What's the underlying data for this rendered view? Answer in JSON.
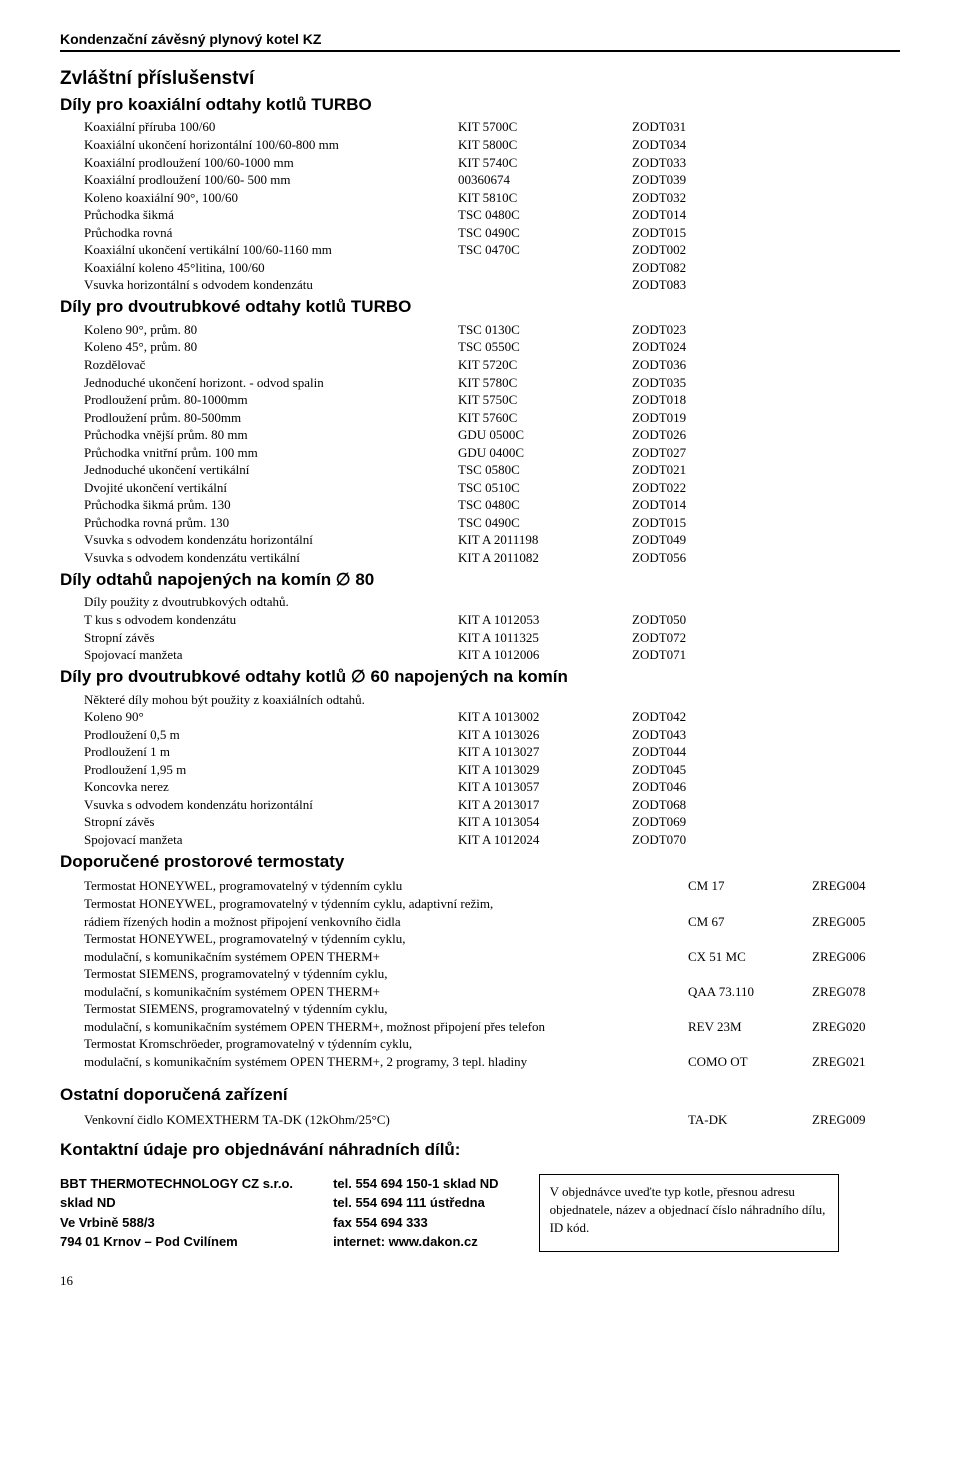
{
  "header": "Kondenzační závěsný plynový kotel KZ",
  "h1": "Zvláštní příslušenství",
  "sections": {
    "s1": {
      "title": "Díly pro koaxiální odtahy kotlů TURBO",
      "rows": [
        [
          "Koaxiální příruba 100/60",
          "KIT 5700C",
          "ZODT031"
        ],
        [
          "Koaxiální ukončení horizontální 100/60-800 mm",
          "KIT 5800C",
          "ZODT034"
        ],
        [
          "Koaxiální prodloužení 100/60-1000 mm",
          "KIT 5740C",
          "ZODT033"
        ],
        [
          "Koaxiální prodloužení 100/60- 500 mm",
          "00360674",
          "ZODT039"
        ],
        [
          "Koleno koaxiální 90°, 100/60",
          "KIT 5810C",
          "ZODT032"
        ],
        [
          "Průchodka šikmá",
          "TSC 0480C",
          "ZODT014"
        ],
        [
          "Průchodka rovná",
          "TSC 0490C",
          "ZODT015"
        ],
        [
          "Koaxiální ukončení vertikální 100/60-1160 mm",
          "TSC 0470C",
          "ZODT002"
        ],
        [
          "Koaxiální koleno 45°litina, 100/60",
          "",
          "ZODT082"
        ],
        [
          "Vsuvka horizontální s odvodem kondenzátu",
          "",
          "ZODT083"
        ]
      ]
    },
    "s2": {
      "title": "Díly pro dvoutrubkové odtahy kotlů TURBO",
      "rows": [
        [
          "Koleno 90°, prům. 80",
          "TSC 0130C",
          "ZODT023"
        ],
        [
          "Koleno 45°, prům. 80",
          "TSC 0550C",
          "ZODT024"
        ],
        [
          "Rozdělovač",
          "KIT 5720C",
          "ZODT036"
        ],
        [
          "Jednoduché ukončení horizont. - odvod spalin",
          "KIT 5780C",
          "ZODT035"
        ],
        [
          "Prodloužení prům. 80-1000mm",
          "KIT 5750C",
          "ZODT018"
        ],
        [
          "Prodloužení prům. 80-500mm",
          "KIT 5760C",
          "ZODT019"
        ],
        [
          "Průchodka vnější prům.  80 mm",
          "GDU 0500C",
          "ZODT026"
        ],
        [
          "Průchodka vnitřní prům. 100 mm",
          "GDU 0400C",
          "ZODT027"
        ],
        [
          "Jednoduché ukončení vertikální",
          "TSC 0580C",
          "ZODT021"
        ],
        [
          "Dvojité ukončení vertikální",
          "TSC 0510C",
          "ZODT022"
        ],
        [
          "Průchodka šikmá prům. 130",
          "TSC 0480C",
          "ZODT014"
        ],
        [
          "Průchodka rovná prům. 130",
          "TSC 0490C",
          "ZODT015"
        ],
        [
          "Vsuvka s odvodem kondenzátu horizontální",
          "KIT A 2011198",
          "ZODT049"
        ],
        [
          "Vsuvka s odvodem kondenzátu vertikální",
          "KIT A 2011082",
          "ZODT056"
        ]
      ]
    },
    "s3": {
      "title": "Díly odtahů napojených na komín ∅ 80",
      "note": "Díly použity z dvoutrubkových  odtahů.",
      "rows": [
        [
          "T kus s odvodem kondenzátu",
          "KIT A 1012053",
          "ZODT050"
        ],
        [
          "Stropní závěs",
          "KIT A 1011325",
          "ZODT072"
        ],
        [
          "Spojovací manžeta",
          "KIT A 1012006",
          "ZODT071"
        ]
      ]
    },
    "s4": {
      "title": "Díly pro dvoutrubkové odtahy kotlů ∅ 60  napojených na komín",
      "note": "Některé díly mohou být použity z koaxiálních odtahů.",
      "rows": [
        [
          "Koleno 90°",
          "KIT A 1013002",
          "ZODT042"
        ],
        [
          "Prodloužení 0,5 m",
          "KIT A 1013026",
          "ZODT043"
        ],
        [
          "Prodloužení 1 m",
          "KIT A 1013027",
          "ZODT044"
        ],
        [
          "Prodloužení 1,95 m",
          "KIT A 1013029",
          "ZODT045"
        ],
        [
          "Koncovka nerez",
          "KIT A 1013057",
          "ZODT046"
        ],
        [
          "Vsuvka s odvodem kondenzátu horizontální",
          "KIT A 2013017",
          "ZODT068"
        ],
        [
          "Stropní závěs",
          "KIT A 1013054",
          "ZODT069"
        ],
        [
          "Spojovací manžeta",
          "KIT A 1012024",
          "ZODT070"
        ]
      ]
    },
    "s5": {
      "title": "Doporučené prostorové termostaty",
      "rows": [
        [
          "Termostat  HONEYWEL, programovatelný v týdenním cyklu",
          "CM 17",
          "ZREG004"
        ],
        [
          "Termostat  HONEYWEL, programovatelný v týdenním cyklu, adaptivní režim,\nrádiem řízených hodin a možnost připojení venkovního čidla",
          "CM 67",
          "ZREG005"
        ],
        [
          "Termostat  HONEYWEL, programovatelný v týdenním cyklu,\nmodulační, s komunikačním systémem OPEN THERM+",
          "CX 51 MC",
          "ZREG006"
        ],
        [
          "Termostat SIEMENS, programovatelný v týdenním cyklu,\nmodulační, s komunikačním systémem OPEN THERM+",
          "QAA 73.110",
          "ZREG078"
        ],
        [
          "Termostat SIEMENS, programovatelný v týdenním cyklu,\nmodulační, s komunikačním systémem OPEN THERM+, možnost připojení přes telefon",
          "REV 23M",
          "ZREG020"
        ],
        [
          "Termostat Kromschröeder, programovatelný v týdenním cyklu,\nmodulační, s komunikačním systémem OPEN THERM+, 2 programy, 3 tepl. hladiny",
          "COMO OT",
          "ZREG021"
        ]
      ]
    },
    "s6": {
      "title": "Ostatní doporučená zařízení",
      "rows": [
        [
          "Venkovní čidlo KOMEXTHERM TA-DK (12kOhm/25°C)",
          "TA-DK",
          "ZREG009"
        ]
      ]
    }
  },
  "contacts_title": "Kontaktní údaje pro objednávání náhradních dílů:",
  "contacts": {
    "col1": [
      "BBT THERMOTECHNOLOGY CZ  s.r.o.",
      "sklad  ND",
      "Ve Vrbině 588/3",
      "794 01  Krnov – Pod Cvilínem"
    ],
    "col2": [
      "tel.  554 694 150-1 sklad ND",
      "tel.  554 694 111 ústředna",
      "fax  554 694 333",
      "internet: www.dakon.cz"
    ]
  },
  "order_box": "V objednávce uveďte typ kotle, přesnou adresu objednatele, název a objednací číslo náhradního dílu, ID kód.",
  "page_num": "16"
}
